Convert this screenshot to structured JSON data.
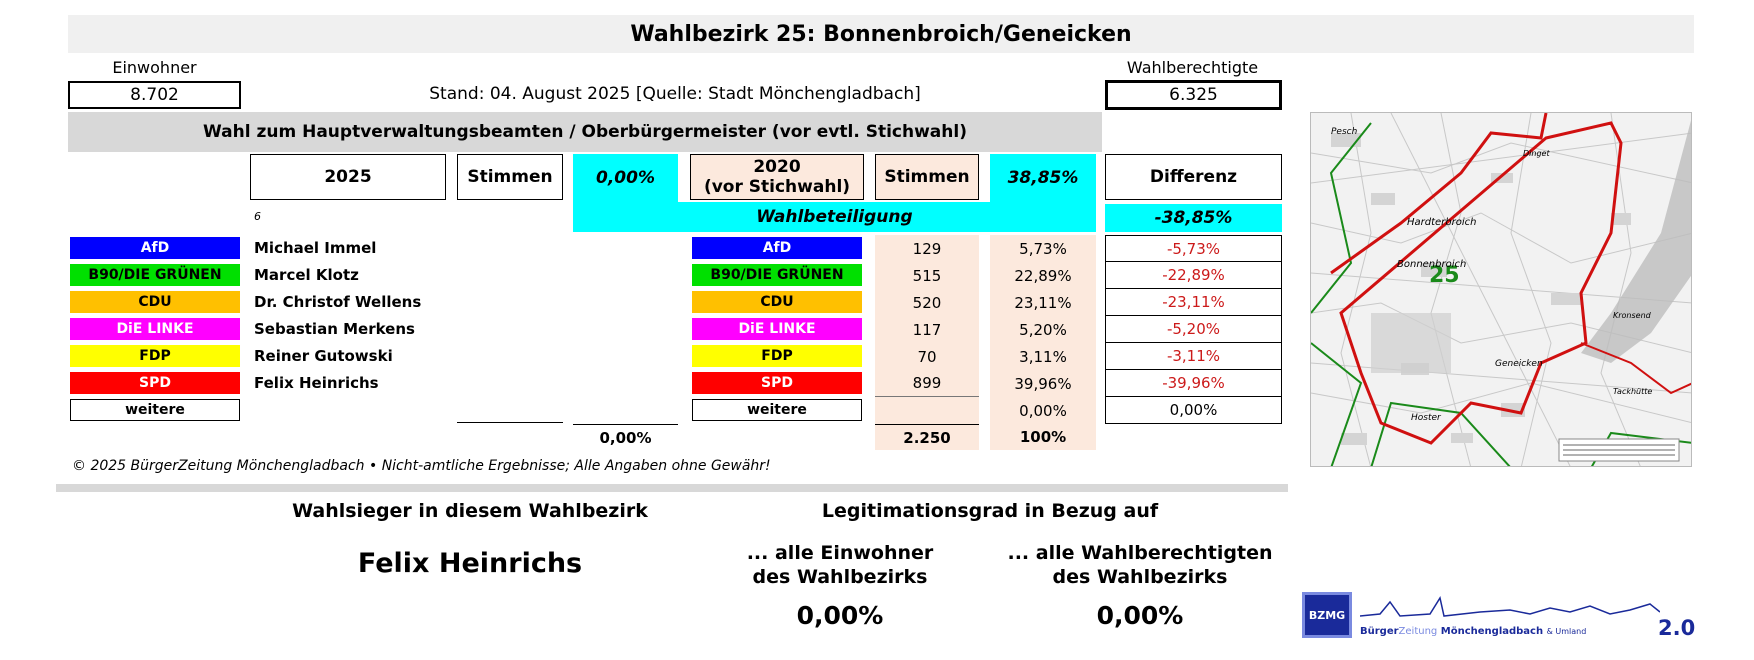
{
  "title": "Wahlbezirk 25: Bonnenbroich/Geneicken",
  "einwohner_label": "Einwohner",
  "einwohner_value": "8.702",
  "stand": "Stand: 04. August 2025 [Quelle: Stadt Mönchengladbach]",
  "wahlberechtigte_label": "Wahlberechtigte",
  "wahlberechtigte_value": "6.325",
  "election_title": "Wahl zum Hauptverwaltungsbeamten / Oberbürgermeister (vor evtl. Stichwahl)",
  "headers": {
    "year_2025": "2025",
    "stimmen_2025": "Stimmen",
    "pct_2025": "0,00%",
    "year_2020_line1": "2020",
    "year_2020_line2": "(vor Stichwahl)",
    "stimmen_2020": "Stimmen",
    "pct_2020": "38,85%",
    "differenz": "Differenz"
  },
  "small_note": "6",
  "wahlbeteiligung_label": "Wahlbeteiligung",
  "wahlbeteiligung_diff": "-38,85%",
  "rows": [
    {
      "party": "AfD",
      "candidate": "Michael Immel",
      "stimmen_2020": "129",
      "pct_2020": "5,73%",
      "diff": "-5,73%",
      "bg": "#0000ff",
      "fg": "#ffffff"
    },
    {
      "party": "B90/DIE GRÜNEN",
      "candidate": "Marcel Klotz",
      "stimmen_2020": "515",
      "pct_2020": "22,89%",
      "diff": "-22,89%",
      "bg": "#00e000",
      "fg": "#000000"
    },
    {
      "party": "CDU",
      "candidate": "Dr. Christof Wellens",
      "stimmen_2020": "520",
      "pct_2020": "23,11%",
      "diff": "-23,11%",
      "bg": "#ffc000",
      "fg": "#000000"
    },
    {
      "party": "DiE LINKE",
      "candidate": "Sebastian Merkens",
      "stimmen_2020": "117",
      "pct_2020": "5,20%",
      "diff": "-5,20%",
      "bg": "#ff00ff",
      "fg": "#ffffff"
    },
    {
      "party": "FDP",
      "candidate": "Reiner Gutowski",
      "stimmen_2020": "70",
      "pct_2020": "3,11%",
      "diff": "-3,11%",
      "bg": "#ffff00",
      "fg": "#000000"
    },
    {
      "party": "SPD",
      "candidate": "Felix Heinrichs",
      "stimmen_2020": "899",
      "pct_2020": "39,96%",
      "diff": "-39,96%",
      "bg": "#ff0000",
      "fg": "#ffffff"
    },
    {
      "party": "weitere",
      "candidate": "",
      "stimmen_2020": "",
      "pct_2020": "0,00%",
      "diff": "0,00%",
      "bg": "#ffffff",
      "fg": "#000000"
    }
  ],
  "totals": {
    "pct_2025": "0,00%",
    "stimmen_2020": "2.250",
    "pct_2020": "100%"
  },
  "footer_note": "© 2025 BürgerZeitung Mönchengladbach  •  Nicht-amtliche Ergebnisse; Alle Angaben ohne Gewähr!",
  "winner_label": "Wahlsieger in diesem Wahlbezirk",
  "winner_name": "Felix Heinrichs",
  "legit_label": "Legitimationsgrad in Bezug auf",
  "legit_einwohner_line1": "... alle Einwohner",
  "legit_einwohner_line2": "des Wahlbezirks",
  "legit_einwohner_value": "0,00%",
  "legit_wb_line1": "... alle Wahlberechtigten",
  "legit_wb_line2": "des Wahlbezirks",
  "legit_wb_value": "0,00%",
  "map": {
    "district_number": "25",
    "places": [
      "Pesch",
      "Hardterbroich",
      "Bonnenbroich",
      "Geneicken",
      "Kronsend",
      "Hoster",
      "Tackhütte",
      "Dinget"
    ]
  },
  "logo": {
    "badge": "BZMG",
    "text_prefix": "Bürger",
    "text_mid": "Zeitung",
    "text_main": "Mönchengladbach",
    "text_suffix": "& Umland",
    "version": "2.0"
  },
  "colors": {
    "cyan": "#00ffff",
    "peach": "#fce9dd",
    "red_text": "#cc1a1a",
    "map_red": "#d01010",
    "map_green": "#1a8a1a",
    "logo_blue": "#1a2a9a"
  }
}
